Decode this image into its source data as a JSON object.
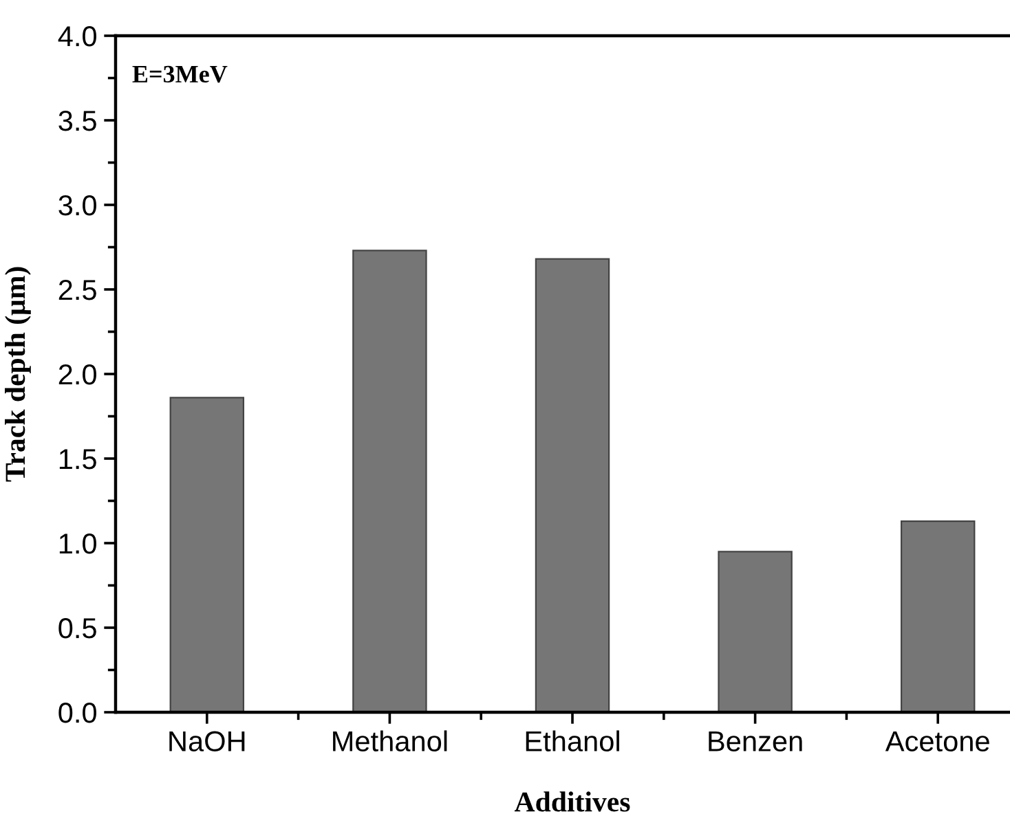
{
  "chart_data": {
    "type": "bar",
    "xlabel": "Additives",
    "ylabel": "Track depth (μm)",
    "categories": [
      "NaOH",
      "Methanol",
      "Ethanol",
      "Benzen",
      "Acetone"
    ],
    "values": [
      1.86,
      2.73,
      2.68,
      0.95,
      1.13
    ],
    "color": "#767676",
    "ylim": [
      0,
      4
    ],
    "yticks": [
      {
        "value": 0,
        "label": "0.0"
      },
      {
        "value": 0.5,
        "label": "0.5"
      },
      {
        "value": 1,
        "label": "1.0"
      },
      {
        "value": 1.5,
        "label": "1.5"
      },
      {
        "value": 2,
        "label": "2.0"
      },
      {
        "value": 2.5,
        "label": "2.5"
      },
      {
        "value": 3,
        "label": "3.0"
      },
      {
        "value": 3.5,
        "label": "3.5"
      },
      {
        "value": 4,
        "label": "4.0"
      }
    ],
    "annotations": [
      "E=3MeV"
    ],
    "grid": false,
    "legend": false
  }
}
